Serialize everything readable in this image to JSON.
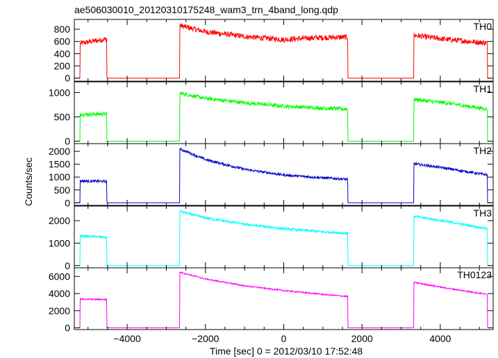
{
  "chart_data": {
    "type": "line",
    "title": "ae506030010_20120310175248_wam3_trn_4band_long.qdp",
    "xlabel": "Time [sec] 0 = 2012/03/10 17:52:48",
    "ylabel": "Counts/sec",
    "xlim": [
      -5350,
      5350
    ],
    "x_ticks": [
      -4000,
      -2000,
      0,
      2000,
      4000
    ],
    "grid": false,
    "segments": [
      [
        -5200,
        -4520
      ],
      [
        -2660,
        1640
      ],
      [
        3320,
        5200
      ]
    ],
    "panels": [
      {
        "name": "TH0",
        "color": "#ff0000",
        "ylim": [
          -50,
          960
        ],
        "y_ticks": [
          0,
          200,
          400,
          600,
          800
        ],
        "noise": 45,
        "points": [
          [
            -5200,
            570
          ],
          [
            -4520,
            640
          ],
          [
            -2660,
            860
          ],
          [
            -2000,
            760
          ],
          [
            -1000,
            680
          ],
          [
            0,
            630
          ],
          [
            800,
            660
          ],
          [
            1640,
            670
          ],
          [
            3320,
            700
          ],
          [
            4200,
            630
          ],
          [
            5200,
            575
          ]
        ]
      },
      {
        "name": "TH1",
        "color": "#00ff00",
        "ylim": [
          -50,
          1220
        ],
        "y_ticks": [
          0,
          500,
          1000
        ],
        "noise": 40,
        "points": [
          [
            -5200,
            550
          ],
          [
            -4520,
            560
          ],
          [
            -2660,
            990
          ],
          [
            -2000,
            880
          ],
          [
            -1000,
            790
          ],
          [
            0,
            720
          ],
          [
            1000,
            680
          ],
          [
            1640,
            660
          ],
          [
            3320,
            860
          ],
          [
            4200,
            780
          ],
          [
            5200,
            660
          ]
        ]
      },
      {
        "name": "TH2",
        "color": "#0000cc",
        "ylim": [
          -100,
          2300
        ],
        "y_ticks": [
          0,
          500,
          1000,
          1500,
          2000
        ],
        "noise": 50,
        "points": [
          [
            -5200,
            850
          ],
          [
            -4520,
            830
          ],
          [
            -2660,
            2100
          ],
          [
            -2000,
            1680
          ],
          [
            -1000,
            1300
          ],
          [
            0,
            1080
          ],
          [
            1000,
            970
          ],
          [
            1640,
            910
          ],
          [
            3320,
            1520
          ],
          [
            4200,
            1330
          ],
          [
            5200,
            1080
          ]
        ]
      },
      {
        "name": "TH3",
        "color": "#00ffff",
        "ylim": [
          -100,
          2650
        ],
        "y_ticks": [
          0,
          1000,
          2000
        ],
        "noise": 55,
        "points": [
          [
            -5200,
            1320
          ],
          [
            -4520,
            1260
          ],
          [
            -2660,
            2420
          ],
          [
            -2000,
            2120
          ],
          [
            -1000,
            1840
          ],
          [
            0,
            1640
          ],
          [
            1000,
            1500
          ],
          [
            1640,
            1440
          ],
          [
            3320,
            2200
          ],
          [
            4200,
            1950
          ],
          [
            5200,
            1640
          ]
        ]
      },
      {
        "name": "TH0123",
        "color": "#ff00ff",
        "ylim": [
          -200,
          7000
        ],
        "y_ticks": [
          0,
          2000,
          4000,
          6000
        ],
        "noise": 80,
        "points": [
          [
            -5200,
            3350
          ],
          [
            -4520,
            3300
          ],
          [
            -2660,
            6500
          ],
          [
            -2000,
            5700
          ],
          [
            -1000,
            4900
          ],
          [
            0,
            4350
          ],
          [
            1000,
            3900
          ],
          [
            1640,
            3650
          ],
          [
            3320,
            5300
          ],
          [
            4200,
            4600
          ],
          [
            5200,
            3900
          ]
        ]
      }
    ]
  }
}
